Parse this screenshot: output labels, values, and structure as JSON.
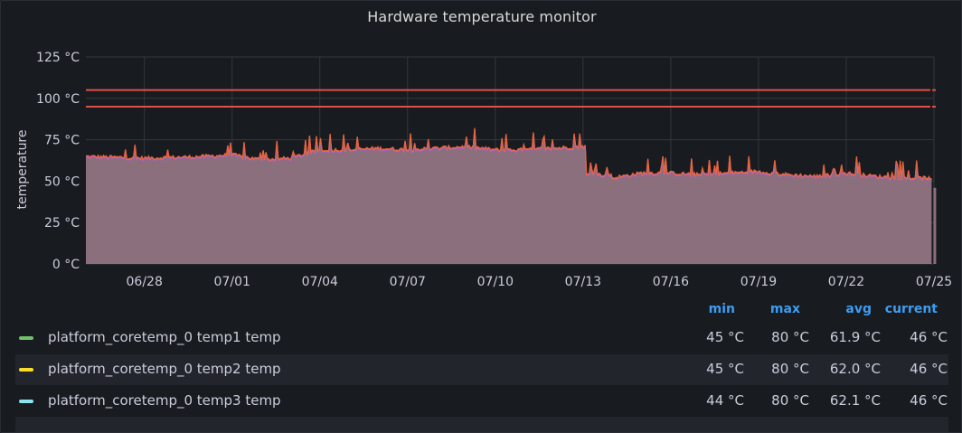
{
  "panel": {
    "title": "Hardware temperature monitor"
  },
  "chart_data": {
    "type": "area",
    "title": "Hardware temperature monitor",
    "ylabel": "temperature",
    "xlabel": "",
    "unit": "°C",
    "ylim": [
      0,
      125
    ],
    "y_ticks": [
      "0 °C",
      "25 °C",
      "50 °C",
      "75 °C",
      "100 °C",
      "125 °C"
    ],
    "x_ticks": [
      "06/28",
      "07/01",
      "07/04",
      "07/07",
      "07/10",
      "07/13",
      "07/16",
      "07/19",
      "07/22",
      "07/25"
    ],
    "x_range": [
      "06/26",
      "07/25"
    ],
    "grid": true,
    "thresholds": [
      95,
      105
    ],
    "threshold_color": "#e0504a",
    "series_keypoints": {
      "x": [
        "06/26",
        "06/28",
        "06/30",
        "07/01",
        "07/02",
        "07/03",
        "07/04",
        "07/05",
        "07/06",
        "07/07",
        "07/08",
        "07/09",
        "07/10",
        "07/11",
        "07/12",
        "07/13",
        "07/14",
        "07/15",
        "07/16",
        "07/17",
        "07/18",
        "07/19",
        "07/20",
        "07/21",
        "07/22",
        "07/23",
        "07/24",
        "07/25"
      ],
      "y": [
        65,
        64,
        65,
        66,
        63,
        64,
        69,
        69,
        70,
        69,
        70,
        71,
        69,
        69,
        70,
        71,
        52,
        55,
        55,
        54,
        55,
        56,
        54,
        53,
        55,
        53,
        52,
        52
      ]
    },
    "series": [
      {
        "name": "platform_coretemp_0 temp1 temp",
        "color": "#73bf69",
        "min": "45 °C",
        "max": "80 °C",
        "avg": "61.9 °C",
        "current": "46 °C"
      },
      {
        "name": "platform_coretemp_0 temp2 temp",
        "color": "#fade2a",
        "min": "45 °C",
        "max": "80 °C",
        "avg": "62.0 °C",
        "current": "46 °C"
      },
      {
        "name": "platform_coretemp_0 temp3 temp",
        "color": "#8ae3ee",
        "min": "44 °C",
        "max": "80 °C",
        "avg": "62.1 °C",
        "current": "46 °C"
      }
    ],
    "fill_color": "#8c6f7d",
    "spike_color": "#e8643c",
    "lower_edge_color": "#b05ad8",
    "legend_placement": "bottom"
  },
  "legend": {
    "headers": {
      "min": "min",
      "max": "max",
      "avg": "avg",
      "current": "current"
    },
    "rows": [
      {
        "name": "platform_coretemp_0 temp1 temp",
        "min": "45 °C",
        "max": "80 °C",
        "avg": "61.9 °C",
        "current": "46 °C"
      },
      {
        "name": "platform_coretemp_0 temp2 temp",
        "min": "45 °C",
        "max": "80 °C",
        "avg": "62.0 °C",
        "current": "46 °C"
      },
      {
        "name": "platform_coretemp_0 temp3 temp",
        "min": "44 °C",
        "max": "80 °C",
        "avg": "62.1 °C",
        "current": "46 °C"
      }
    ]
  }
}
